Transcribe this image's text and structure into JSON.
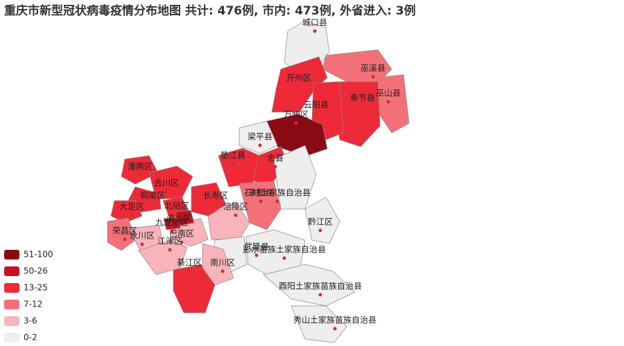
{
  "header": {
    "title": "重庆市新型冠状病毒疫情分布地图 共计: 476例, 市内: 473例, 外省进入: 3例"
  },
  "legend": [
    {
      "label": "51-100",
      "color": "#8b0a14"
    },
    {
      "label": "50-26",
      "color": "#c81223"
    },
    {
      "label": "13-25",
      "color": "#ee2a38"
    },
    {
      "label": "7-12",
      "color": "#f47078"
    },
    {
      "label": "3-6",
      "color": "#f8b4ba"
    },
    {
      "label": "0-2",
      "color": "#eeeeee"
    }
  ],
  "regions": [
    {
      "name": "城口县",
      "color": "#eeeeee"
    },
    {
      "name": "巫溪县",
      "color": "#f47078"
    },
    {
      "name": "开州区",
      "color": "#ee2a38"
    },
    {
      "name": "巫山县",
      "color": "#f47078"
    },
    {
      "name": "奉节县",
      "color": "#ee2a38"
    },
    {
      "name": "云阳县",
      "color": "#ee2a38"
    },
    {
      "name": "万州区",
      "color": "#8b0a14"
    },
    {
      "name": "梁平县",
      "color": "#eeeeee"
    },
    {
      "name": "垫江县",
      "color": "#ee2a38"
    },
    {
      "name": "忠县",
      "color": "#ee2a38"
    },
    {
      "name": "潼南区",
      "color": "#ee2a38"
    },
    {
      "name": "合川区",
      "color": "#ee2a38"
    },
    {
      "name": "铜梁区",
      "color": "#ee2a38"
    },
    {
      "name": "大足区",
      "color": "#ee2a38"
    },
    {
      "name": "北碚区",
      "color": "#ee2a38"
    },
    {
      "name": "长寿区",
      "color": "#ee2a38"
    },
    {
      "name": "丰都县",
      "color": "#f47078"
    },
    {
      "name": "石柱土家族自治县",
      "color": "#eeeeee"
    },
    {
      "name": "涪陵区",
      "color": "#f8b4ba"
    },
    {
      "name": "荣昌区",
      "color": "#f47078"
    },
    {
      "name": "永川区",
      "color": "#f8b4ba"
    },
    {
      "name": "江津区",
      "color": "#f8b4ba"
    },
    {
      "name": "巴南区",
      "color": "#f8b4ba"
    },
    {
      "name": "黔江区",
      "color": "#eeeeee"
    },
    {
      "name": "彭水苗族土家族自治县",
      "color": "#eeeeee"
    },
    {
      "name": "武隆县",
      "color": "#eeeeee"
    },
    {
      "name": "綦江区",
      "color": "#ee2a38"
    },
    {
      "name": "南川区",
      "color": "#f8b4ba"
    },
    {
      "name": "酉阳土家族苗族自治县",
      "color": "#eeeeee"
    },
    {
      "name": "秀山土家族苗族自治县",
      "color": "#eeeeee"
    },
    {
      "name": "渝北区",
      "color": "#c81223"
    },
    {
      "name": "九龙坡区",
      "color": "#c81223"
    }
  ]
}
